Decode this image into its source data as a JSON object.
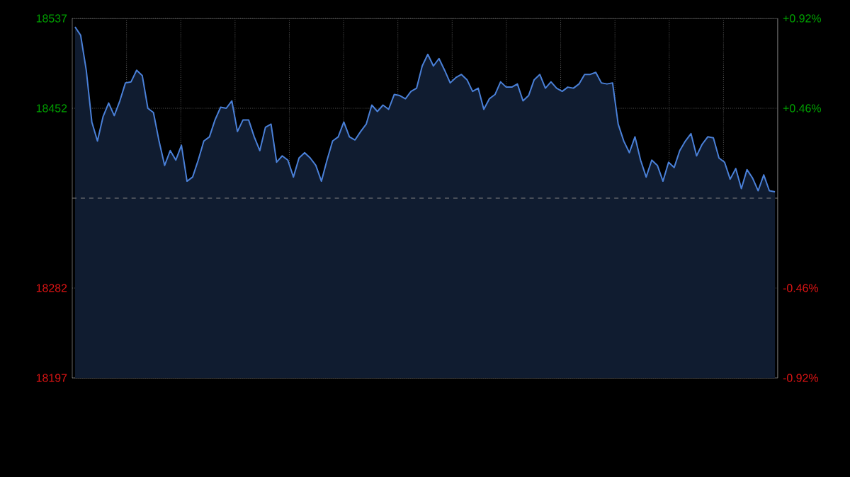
{
  "chart_data": {
    "type": "area",
    "color": "#4a80d8",
    "categories": [
      null,
      null,
      null,
      null,
      null,
      null,
      null,
      null,
      null,
      null,
      null,
      null,
      null,
      null,
      null,
      null,
      null,
      null,
      null,
      null,
      null,
      null,
      null,
      null,
      null,
      null,
      null,
      null,
      null,
      null,
      null,
      null,
      null,
      null,
      null,
      null,
      null,
      null,
      null,
      null,
      null,
      null,
      null,
      null,
      null,
      null,
      null,
      null,
      null,
      null,
      null,
      null,
      null,
      null,
      null,
      null,
      null,
      null,
      null,
      null,
      null,
      null,
      null,
      null,
      null,
      null,
      null,
      null,
      null,
      null,
      null,
      null,
      null,
      null,
      null,
      null,
      null,
      null,
      null,
      null,
      null,
      null,
      null,
      null,
      null,
      null,
      null,
      null,
      null,
      null,
      null,
      null,
      null,
      null,
      null,
      null,
      null,
      null,
      null,
      null,
      null,
      null,
      null,
      null,
      null,
      null,
      null,
      null,
      null,
      null,
      null,
      null,
      null,
      null,
      null,
      null,
      null,
      null,
      null,
      null,
      null,
      null,
      null,
      null,
      null,
      null
    ],
    "values": [
      18529,
      18521,
      18488,
      18439,
      18421,
      18444,
      18457,
      18445,
      18459,
      18476,
      18477,
      18488,
      18483,
      18452,
      18448,
      18421,
      18398,
      18412,
      18403,
      18417,
      18383,
      18387,
      18403,
      18421,
      18425,
      18441,
      18453,
      18452,
      18459,
      18430,
      18441,
      18441,
      18425,
      18412,
      18434,
      18437,
      18401,
      18407,
      18403,
      18387,
      18405,
      18410,
      18405,
      18398,
      18383,
      18403,
      18421,
      18425,
      18439,
      18425,
      18422,
      18430,
      18437,
      18455,
      18449,
      18455,
      18451,
      18465,
      18464,
      18461,
      18468,
      18471,
      18492,
      18503,
      18492,
      18499,
      18488,
      18476,
      18481,
      18484,
      18479,
      18468,
      18471,
      18451,
      18461,
      18465,
      18477,
      18472,
      18472,
      18475,
      18459,
      18464,
      18479,
      18484,
      18471,
      18477,
      18471,
      18468,
      18472,
      18471,
      18475,
      18484,
      18484,
      18486,
      18476,
      18475,
      18476,
      18437,
      18421,
      18410,
      18425,
      18403,
      18387,
      18403,
      18398,
      18383,
      18401,
      18396,
      18412,
      18421,
      18428,
      18407,
      18418,
      18425,
      18424,
      18405,
      18401,
      18385,
      18395,
      18376,
      18394,
      18386,
      18374,
      18389,
      18374,
      18373
    ],
    "ylim": [
      18197,
      18537
    ],
    "yticks": [
      18197,
      18282,
      18452,
      18537
    ],
    "y2lim": [
      -0.92,
      0.92
    ],
    "y2ticks": [
      {
        "value": -0.92,
        "label": "-0.92%"
      },
      {
        "value": -0.46,
        "label": "-0.46%"
      },
      {
        "value": 0.46,
        "label": "+0.46%"
      },
      {
        "value": 0.92,
        "label": "+0.92%"
      }
    ],
    "grid": true,
    "tick_labels": "y",
    "ref_lines": [
      {
        "axis": "y",
        "value": 18367,
        "line_style": "dashed",
        "color": "#808080"
      }
    ]
  }
}
